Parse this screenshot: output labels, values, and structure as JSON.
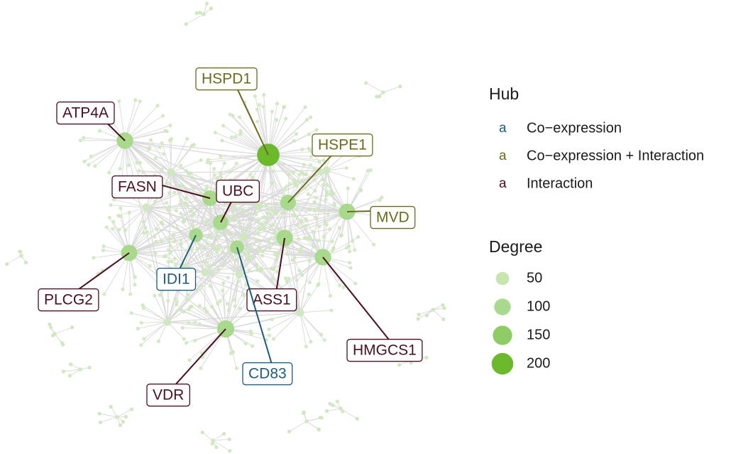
{
  "colors": {
    "coexpression": "#1d5c7e",
    "coexp_interaction": "#6b6b1e",
    "interaction": "#4a0f1c",
    "edge": "#d9d9d9",
    "leaf": "#cfe8bf",
    "hub_small": "#a9d98d",
    "hub_large": "#6cba2c"
  },
  "network": {
    "hubs": [
      {
        "name": "HSPD1",
        "type": "coexp_interaction",
        "degree": 220
      },
      {
        "name": "ATP4A",
        "type": "interaction",
        "degree": 100
      },
      {
        "name": "HSPE1",
        "type": "coexp_interaction",
        "degree": 85
      },
      {
        "name": "FASN",
        "type": "interaction",
        "degree": 85
      },
      {
        "name": "UBC",
        "type": "interaction",
        "degree": 80
      },
      {
        "name": "MVD",
        "type": "coexp_interaction",
        "degree": 95
      },
      {
        "name": "IDI1",
        "type": "coexpression",
        "degree": 60
      },
      {
        "name": "PLCG2",
        "type": "interaction",
        "degree": 95
      },
      {
        "name": "ASS1",
        "type": "interaction",
        "degree": 100
      },
      {
        "name": "HMGCS1",
        "type": "interaction",
        "degree": 100
      },
      {
        "name": "VDR",
        "type": "interaction",
        "degree": 110
      },
      {
        "name": "CD83",
        "type": "coexpression",
        "degree": 60
      }
    ]
  },
  "legend": {
    "hub_title": "Hub",
    "key_glyph": "a",
    "hub_items": [
      {
        "label": "Co−expression",
        "type": "coexpression"
      },
      {
        "label": "Co−expression + Interaction",
        "type": "coexp_interaction"
      },
      {
        "label": "Interaction",
        "type": "interaction"
      }
    ],
    "degree_title": "Degree",
    "degree_items": [
      {
        "label": "50",
        "value": 50
      },
      {
        "label": "100",
        "value": 100
      },
      {
        "label": "150",
        "value": 150
      },
      {
        "label": "200",
        "value": 200
      }
    ]
  }
}
